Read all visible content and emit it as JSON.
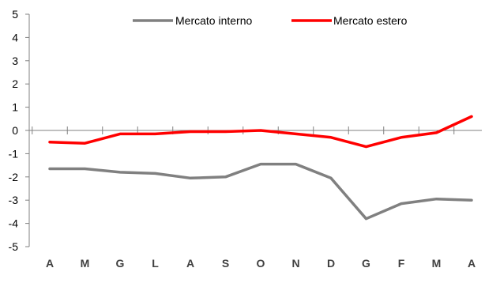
{
  "chart_data": {
    "type": "line",
    "categories": [
      "A",
      "M",
      "G",
      "L",
      "A",
      "S",
      "O",
      "N",
      "D",
      "G",
      "F",
      "M",
      "A"
    ],
    "series": [
      {
        "name": "Mercato interno",
        "color": "#808080",
        "values": [
          -1.65,
          -1.65,
          -1.8,
          -1.85,
          -2.05,
          -2.0,
          -1.45,
          -1.45,
          -2.05,
          -3.8,
          -3.15,
          -2.95,
          -3.0
        ]
      },
      {
        "name": "Mercato estero",
        "color": "#ff0000",
        "values": [
          -0.5,
          -0.55,
          -0.15,
          -0.15,
          -0.05,
          -0.05,
          0.0,
          -0.15,
          -0.3,
          -0.7,
          -0.3,
          -0.1,
          0.6
        ]
      }
    ],
    "ylim": [
      -5,
      5
    ],
    "yticks": [
      -5,
      -4,
      -3,
      -2,
      -1,
      0,
      1,
      2,
      3,
      4,
      5
    ],
    "xlabel": "",
    "ylabel": "",
    "title": "",
    "grid": false,
    "legend": "top"
  }
}
